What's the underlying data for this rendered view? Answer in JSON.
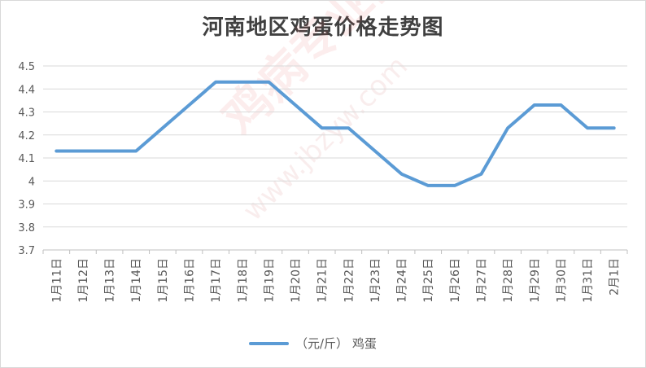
{
  "title": "河南地区鸡蛋价格走势图",
  "watermark": {
    "text": "鸡病专业网",
    "url": "www.jbzyw.com"
  },
  "chart_data": {
    "type": "line",
    "title": "河南地区鸡蛋价格走势图",
    "categories": [
      "1月11日",
      "1月12日",
      "1月13日",
      "1月14日",
      "1月15日",
      "1月16日",
      "1月17日",
      "1月18日",
      "1月19日",
      "1月20日",
      "1月21日",
      "1月22日",
      "1月23日",
      "1月24日",
      "1月25日",
      "1月26日",
      "1月27日",
      "1月28日",
      "1月29日",
      "1月30日",
      "1月31日",
      "2月1日"
    ],
    "series": [
      {
        "name": "（元/斤） 鸡蛋",
        "values": [
          4.13,
          4.13,
          4.13,
          4.13,
          4.23,
          4.33,
          4.43,
          4.43,
          4.43,
          4.33,
          4.23,
          4.23,
          4.13,
          4.03,
          3.98,
          3.98,
          4.03,
          4.23,
          4.33,
          4.33,
          4.23,
          4.23
        ],
        "color": "#5b9bd5"
      }
    ],
    "ylim": [
      3.7,
      4.5
    ],
    "yticks": [
      3.7,
      3.8,
      3.9,
      4.0,
      4.1,
      4.2,
      4.3,
      4.4,
      4.5
    ],
    "ytick_labels": [
      "3.7",
      "3.8",
      "3.9",
      "4",
      "4.1",
      "4.2",
      "4.3",
      "4.4",
      "4.5"
    ],
    "grid": true,
    "legend": "bottom-center"
  }
}
